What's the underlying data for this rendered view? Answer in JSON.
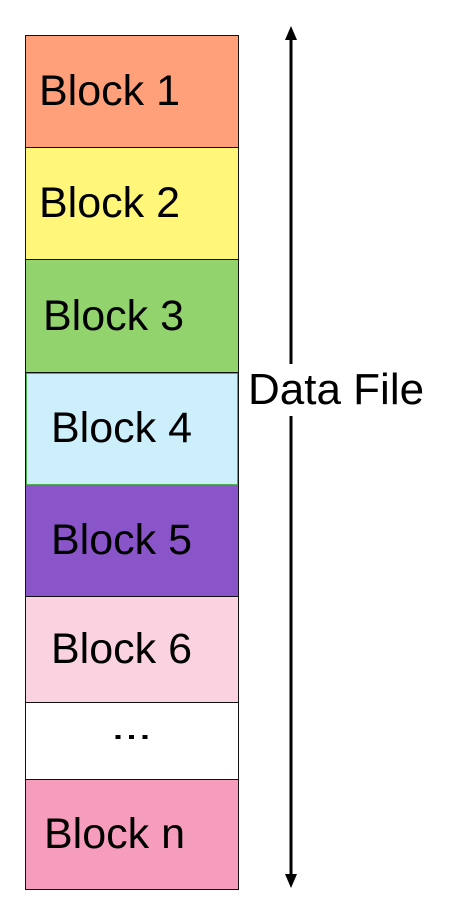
{
  "blocks": [
    {
      "id": "b1",
      "label": "Block 1",
      "color": "#FFA07A"
    },
    {
      "id": "b2",
      "label": "Block 2",
      "color": "#FFF67A"
    },
    {
      "id": "b3",
      "label": "Block 3",
      "color": "#92D36E"
    },
    {
      "id": "b4",
      "label": "Block 4",
      "color": "#CDEFFB"
    },
    {
      "id": "b5",
      "label": "Block 5",
      "color": "#8A55C9"
    },
    {
      "id": "b6",
      "label": "Block 6",
      "color": "#FBD3E0"
    },
    {
      "id": "b7",
      "label": "⋮",
      "color": "#FFFFFF"
    },
    {
      "id": "b8",
      "label": "Block n",
      "color": "#F69CBC"
    }
  ],
  "arrow_label": "Data File",
  "colors": {
    "border": "#111111",
    "text": "#000000",
    "background": "#FFFFFF"
  },
  "icons": {
    "span_arrow": "double-headed-vertical-arrow"
  }
}
